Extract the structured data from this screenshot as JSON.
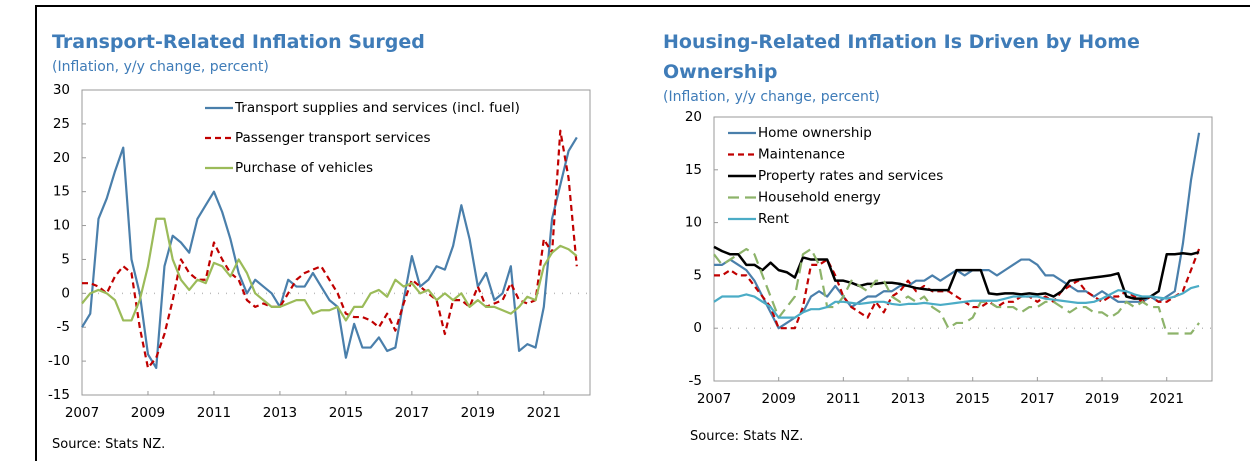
{
  "chart_data": [
    {
      "type": "line",
      "title": "Transport-Related Inflation Surged",
      "subtitle": "(Inflation, y/y change, percent)",
      "source": "Source: Stats NZ.",
      "x": [
        2007,
        2007.25,
        2007.5,
        2007.75,
        2008,
        2008.25,
        2008.5,
        2008.75,
        2009,
        2009.25,
        2009.5,
        2009.75,
        2010,
        2010.25,
        2010.5,
        2010.75,
        2011,
        2011.25,
        2011.5,
        2011.75,
        2012,
        2012.25,
        2012.5,
        2012.75,
        2013,
        2013.25,
        2013.5,
        2013.75,
        2014,
        2014.25,
        2014.5,
        2014.75,
        2015,
        2015.25,
        2015.5,
        2015.75,
        2016,
        2016.25,
        2016.5,
        2016.75,
        2017,
        2017.25,
        2017.5,
        2017.75,
        2018,
        2018.25,
        2018.5,
        2018.75,
        2019,
        2019.25,
        2019.5,
        2019.75,
        2020,
        2020.25,
        2020.5,
        2020.75,
        2021,
        2021.25,
        2021.5,
        2021.75,
        2022
      ],
      "xlim": [
        2007,
        2022.4
      ],
      "xticks": [
        2007,
        2009,
        2011,
        2013,
        2015,
        2017,
        2019,
        2021
      ],
      "ylim": [
        -15,
        30
      ],
      "yticks": [
        -15,
        -10,
        -5,
        0,
        5,
        10,
        15,
        20,
        25,
        30
      ],
      "series": [
        {
          "name": "Transport supplies and services (incl. fuel)",
          "color": "#4a7fab",
          "line_style": "solid",
          "values": [
            -5,
            -3,
            11,
            14,
            18,
            21.5,
            5,
            0,
            -9,
            -11,
            4,
            8.5,
            7.5,
            6,
            11,
            13,
            15,
            12,
            8,
            3,
            0,
            2,
            1,
            0,
            -2,
            2,
            1,
            1,
            3,
            1,
            -1,
            -2,
            -9.5,
            -4.5,
            -8,
            -8,
            -6.5,
            -8.5,
            -8,
            -1,
            5.5,
            1,
            2,
            4,
            3.5,
            7,
            13,
            8,
            1,
            3,
            -1,
            0,
            4,
            -8.5,
            -7.5,
            -8,
            -2,
            11,
            16,
            21,
            23
          ]
        },
        {
          "name": "Passenger transport services",
          "color": "#c00000",
          "line_style": "dashed",
          "values": [
            1.5,
            1.5,
            1,
            0,
            2.5,
            4,
            3,
            -5,
            -11,
            -9.5,
            -6,
            -1,
            5,
            3,
            2,
            2,
            7.5,
            5,
            3,
            2,
            -1,
            -2,
            -1.5,
            -2,
            -2,
            0,
            2,
            3,
            3.5,
            4,
            2,
            0,
            -3,
            -3.5,
            -3.5,
            -4,
            -5,
            -3,
            -5.5,
            -1.5,
            2,
            1,
            0,
            -1,
            -6,
            -1,
            -1,
            -2,
            1,
            -2,
            -1.5,
            -1,
            1.5,
            -1,
            -1.5,
            -1,
            8,
            6,
            24,
            17,
            4
          ]
        },
        {
          "name": "Purchase of vehicles",
          "color": "#9bbb59",
          "line_style": "solid",
          "values": [
            -1.5,
            0,
            0.5,
            0,
            -1,
            -4,
            -4,
            -1,
            4,
            11,
            11,
            5,
            2,
            0.5,
            2,
            1.5,
            4.5,
            4,
            2.5,
            5,
            3,
            0,
            -1,
            -2,
            -2,
            -1.5,
            -1,
            -1,
            -3,
            -2.5,
            -2.5,
            -2,
            -4,
            -2,
            -2,
            0,
            0.5,
            -0.5,
            2,
            1,
            1.5,
            0,
            0.5,
            -1,
            0,
            -1,
            0,
            -2,
            -1,
            -2,
            -2,
            -2.5,
            -3,
            -2,
            -0.5,
            -1,
            4,
            6,
            7,
            6.5,
            5.5
          ]
        }
      ]
    },
    {
      "type": "line",
      "title": "Housing-Related Inflation Is Driven by Home Ownership",
      "subtitle": "(Inflation, y/y change, percent)",
      "source": "Source: Stats NZ.",
      "x": [
        2007,
        2007.25,
        2007.5,
        2007.75,
        2008,
        2008.25,
        2008.5,
        2008.75,
        2009,
        2009.25,
        2009.5,
        2009.75,
        2010,
        2010.25,
        2010.5,
        2010.75,
        2011,
        2011.25,
        2011.5,
        2011.75,
        2012,
        2012.25,
        2012.5,
        2012.75,
        2013,
        2013.25,
        2013.5,
        2013.75,
        2014,
        2014.25,
        2014.5,
        2014.75,
        2015,
        2015.25,
        2015.5,
        2015.75,
        2016,
        2016.25,
        2016.5,
        2016.75,
        2017,
        2017.25,
        2017.5,
        2017.75,
        2018,
        2018.25,
        2018.5,
        2018.75,
        2019,
        2019.25,
        2019.5,
        2019.75,
        2020,
        2020.25,
        2020.5,
        2020.75,
        2021,
        2021.25,
        2021.5,
        2021.75,
        2022
      ],
      "xlim": [
        2007,
        2022.4
      ],
      "xticks": [
        2007,
        2009,
        2011,
        2013,
        2015,
        2017,
        2019,
        2021
      ],
      "ylim": [
        -5,
        20
      ],
      "yticks": [
        -5,
        0,
        5,
        10,
        15,
        20
      ],
      "series": [
        {
          "name": "Home ownership",
          "color": "#4a7fab",
          "line_style": "solid",
          "values": [
            6,
            6,
            6.5,
            6,
            5.5,
            4.5,
            3,
            1.5,
            0,
            0.5,
            1,
            1.5,
            3,
            3.5,
            3,
            4,
            3,
            2,
            2.5,
            3,
            3,
            3.5,
            3.5,
            4,
            4,
            4.5,
            4.5,
            5,
            4.5,
            5,
            5.5,
            5,
            5.5,
            5.5,
            5.5,
            5,
            5.5,
            6,
            6.5,
            6.5,
            6,
            5,
            5,
            4.5,
            4,
            3.5,
            3.5,
            3,
            3.5,
            3,
            2.5,
            2.5,
            2.5,
            2.5,
            3,
            2.5,
            3,
            3.5,
            8,
            14,
            18.5
          ]
        },
        {
          "name": "Maintenance",
          "color": "#c00000",
          "line_style": "dashed",
          "values": [
            5,
            5,
            5.5,
            5,
            5,
            4,
            3,
            2,
            0,
            0,
            0,
            2,
            6,
            6,
            6.5,
            5,
            3,
            2,
            1.5,
            1,
            2.5,
            1.5,
            3,
            3.5,
            4.5,
            3.5,
            4,
            3.5,
            3.5,
            3.5,
            3,
            2.5,
            2,
            2,
            2.5,
            2,
            2.5,
            2.5,
            3,
            3,
            2.5,
            3,
            2.5,
            3.5,
            4,
            4.5,
            3.5,
            3,
            2.5,
            3,
            3,
            3.5,
            3,
            2.5,
            3,
            2.5,
            2.5,
            3,
            3.5,
            5.5,
            7.5
          ]
        },
        {
          "name": "Property rates and services",
          "color": "#000000",
          "line_style": "solid",
          "values": [
            7.7,
            7.3,
            7,
            7,
            6,
            6,
            5.5,
            6.2,
            5.5,
            5.3,
            4.8,
            6.7,
            6.5,
            6.5,
            6.5,
            4.5,
            4.5,
            4.3,
            4,
            4.2,
            4.2,
            4.3,
            4.3,
            4.2,
            4,
            3.8,
            3.7,
            3.6,
            3.6,
            3.6,
            5.5,
            5.5,
            5.5,
            5.5,
            3.3,
            3.2,
            3.3,
            3.3,
            3.2,
            3.3,
            3.2,
            3.3,
            3,
            3.5,
            4.5,
            4.6,
            4.7,
            4.8,
            4.9,
            5,
            5.2,
            3,
            2.8,
            2.8,
            3,
            3.5,
            7,
            7,
            7.1,
            7,
            7.2
          ]
        },
        {
          "name": "Household energy",
          "color": "#8db36a",
          "line_style": "long-dashed",
          "values": [
            7,
            6,
            6.5,
            7,
            7.5,
            7,
            5,
            3,
            1,
            2,
            3,
            7,
            7.5,
            6,
            2,
            2,
            3,
            4.5,
            4,
            3.5,
            4.5,
            4.5,
            3,
            2.5,
            3,
            2.5,
            3,
            2,
            1.5,
            0,
            0.5,
            0.5,
            1,
            2.5,
            2.5,
            2,
            2,
            2,
            1.5,
            2,
            2,
            2.5,
            2.5,
            2,
            1.5,
            2,
            2,
            1.5,
            1.5,
            1,
            1.5,
            2.5,
            2,
            2.5,
            2,
            2,
            -0.5,
            -0.5,
            -0.5,
            -0.5,
            0.5
          ]
        },
        {
          "name": "Rent",
          "color": "#4bacc6",
          "line_style": "solid",
          "values": [
            2.5,
            3,
            3,
            3,
            3.2,
            3,
            2.5,
            2,
            1,
            1,
            1,
            1.5,
            1.8,
            1.8,
            2,
            2.5,
            2.5,
            2.4,
            2.3,
            2.4,
            2.5,
            2.5,
            2.3,
            2.2,
            2.3,
            2.3,
            2.4,
            2.3,
            2.2,
            2.3,
            2.4,
            2.5,
            2.6,
            2.6,
            2.6,
            2.6,
            2.8,
            3,
            3,
            3,
            3,
            2.8,
            2.7,
            2.6,
            2.5,
            2.4,
            2.4,
            2.5,
            2.8,
            3.2,
            3.6,
            3.5,
            3.2,
            3,
            3,
            2.9,
            2.8,
            3,
            3.3,
            3.8,
            4
          ]
        }
      ]
    }
  ]
}
